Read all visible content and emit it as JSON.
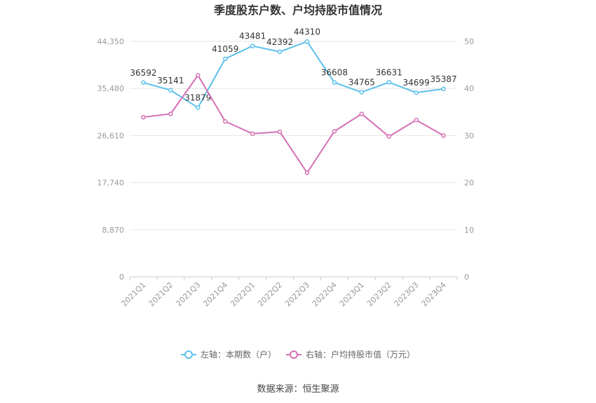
{
  "chart_data": {
    "type": "line",
    "title": "季度股东户数、户均持股市值情况",
    "categories": [
      "2021Q1",
      "2021Q2",
      "2021Q3",
      "2021Q4",
      "2022Q1",
      "2022Q2",
      "2022Q3",
      "2022Q4",
      "2023Q1",
      "2023Q2",
      "2023Q3",
      "2023Q4"
    ],
    "left_axis": {
      "min": 0,
      "max": 44350,
      "ticks": [
        "0",
        "8,870",
        "17,740",
        "26,610",
        "35,480",
        "44,350"
      ]
    },
    "right_axis": {
      "min": 0,
      "max": 50,
      "ticks": [
        "0",
        "10",
        "20",
        "30",
        "40",
        "50"
      ]
    },
    "series": [
      {
        "name": "左轴：本期数（户）",
        "axis": "left",
        "color": "#5bc0eb",
        "values": [
          36592,
          35141,
          31879,
          41059,
          43481,
          42392,
          44310,
          36608,
          34765,
          36631,
          34699,
          35387
        ],
        "labels": [
          "36592",
          "35141",
          "31879",
          "41059",
          "43481",
          "42392",
          "44310",
          "36608",
          "34765",
          "36631",
          "34699",
          "35387"
        ]
      },
      {
        "name": "右轴：户均持股市值（万元）",
        "axis": "right",
        "color": "#d46fb4",
        "values": [
          33.9,
          34.6,
          42.8,
          33.0,
          30.4,
          30.8,
          22.1,
          30.9,
          34.6,
          29.8,
          33.3,
          30.0
        ]
      }
    ],
    "grid": true,
    "legend": "bottom"
  },
  "source": "数据来源：恒生聚源"
}
